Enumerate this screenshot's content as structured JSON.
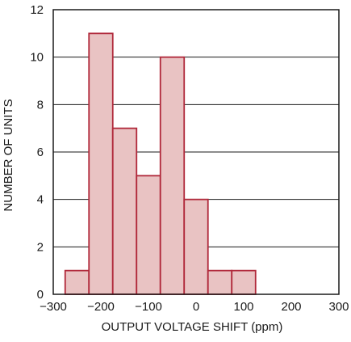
{
  "chart_data": {
    "type": "bar",
    "title": "",
    "xlabel": "OUTPUT VOLTAGE SHIFT (ppm)",
    "ylabel": "NUMBER OF UNITS",
    "xlim": [
      -300,
      300
    ],
    "ylim": [
      0,
      12
    ],
    "xticks": [
      -300,
      -200,
      -100,
      0,
      100,
      200,
      300
    ],
    "xtick_labels": [
      "−300",
      "−200",
      "−100",
      "0",
      "100",
      "200",
      "300"
    ],
    "yticks": [
      0,
      2,
      4,
      6,
      8,
      10,
      12
    ],
    "ytick_labels": [
      "0",
      "2",
      "4",
      "6",
      "8",
      "10",
      "12"
    ],
    "grid": "horizontal",
    "bin_width": 50,
    "bins": [
      {
        "x0": -275,
        "x1": -225,
        "value": 1
      },
      {
        "x0": -225,
        "x1": -175,
        "value": 11
      },
      {
        "x0": -175,
        "x1": -125,
        "value": 7
      },
      {
        "x0": -125,
        "x1": -75,
        "value": 5
      },
      {
        "x0": -75,
        "x1": -25,
        "value": 10
      },
      {
        "x0": -25,
        "x1": 25,
        "value": 4
      },
      {
        "x0": 25,
        "x1": 75,
        "value": 1
      },
      {
        "x0": 75,
        "x1": 125,
        "value": 1
      }
    ],
    "colors": {
      "bar_fill": "#e9c3c3",
      "bar_stroke": "#b0283a",
      "grid": "#1a1a1a",
      "axis": "#1a1a1a"
    }
  }
}
